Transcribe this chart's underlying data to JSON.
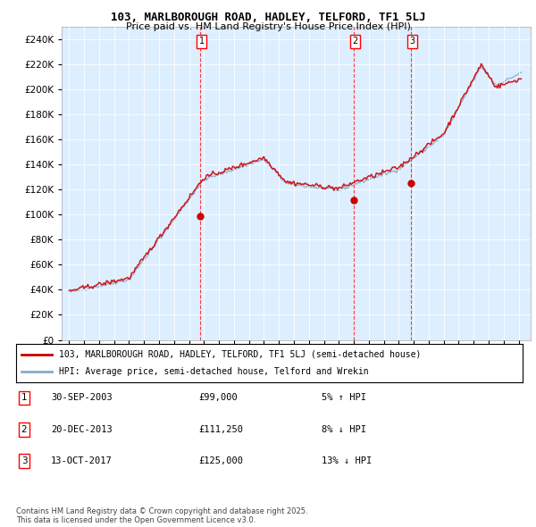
{
  "title": "103, MARLBOROUGH ROAD, HADLEY, TELFORD, TF1 5LJ",
  "subtitle": "Price paid vs. HM Land Registry's House Price Index (HPI)",
  "legend_line1": "103, MARLBOROUGH ROAD, HADLEY, TELFORD, TF1 5LJ (semi-detached house)",
  "legend_line2": "HPI: Average price, semi-detached house, Telford and Wrekin",
  "transactions": [
    {
      "num": 1,
      "date": "30-SEP-2003",
      "price": 99000,
      "pct": "5%",
      "dir": "↑"
    },
    {
      "num": 2,
      "date": "20-DEC-2013",
      "price": 111250,
      "pct": "8%",
      "dir": "↓"
    },
    {
      "num": 3,
      "date": "13-OCT-2017",
      "price": 125000,
      "pct": "13%",
      "dir": "↓"
    }
  ],
  "transaction_years": [
    2003.75,
    2013.97,
    2017.79
  ],
  "sale_prices": [
    99000,
    111250,
    125000
  ],
  "ylim": [
    0,
    250000
  ],
  "yticks": [
    0,
    20000,
    40000,
    60000,
    80000,
    100000,
    120000,
    140000,
    160000,
    180000,
    200000,
    220000,
    240000
  ],
  "xlim_start": 1994.5,
  "xlim_end": 2025.8,
  "red_color": "#cc0000",
  "blue_color": "#88aacc",
  "bg_color": "#ddeeff",
  "footer": "Contains HM Land Registry data © Crown copyright and database right 2025.\nThis data is licensed under the Open Government Licence v3.0."
}
